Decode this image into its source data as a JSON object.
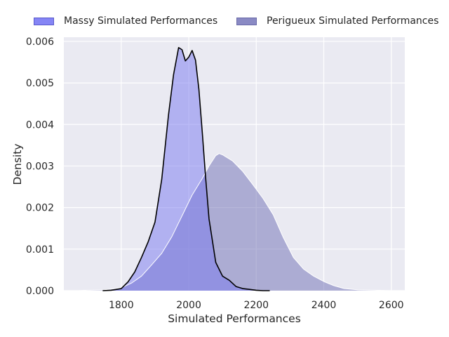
{
  "legend": [
    {
      "label": "Massy Simulated Performances",
      "color": "#8585f5",
      "edge": "#5a5acb"
    },
    {
      "label": "Perigueux Simulated Performances",
      "color": "#8a8ac4",
      "edge": "#6a6aa8"
    }
  ],
  "chart_data": {
    "type": "area",
    "title": "",
    "xlabel": "Simulated Performances",
    "ylabel": "Density",
    "xlim": [
      1630,
      2640
    ],
    "ylim": [
      0,
      0.0061
    ],
    "xticks": [
      1800,
      2000,
      2200,
      2400,
      2600
    ],
    "yticks": [
      0.0,
      0.001,
      0.002,
      0.003,
      0.004,
      0.005,
      0.006
    ],
    "ytick_labels": [
      "0.000",
      "0.001",
      "0.002",
      "0.003",
      "0.004",
      "0.005",
      "0.006"
    ],
    "grid": true,
    "legend_position": "top",
    "series": [
      {
        "name": "Massy Simulated Performances",
        "fill": "#7878f0",
        "fill_opacity": 0.5,
        "stroke": "#000000",
        "x": [
          1745,
          1770,
          1800,
          1820,
          1840,
          1860,
          1880,
          1900,
          1920,
          1940,
          1955,
          1970,
          1980,
          1990,
          2000,
          2010,
          2020,
          2030,
          2040,
          2050,
          2060,
          2080,
          2100,
          2120,
          2140,
          2160,
          2180,
          2200,
          2220,
          2240
        ],
        "y": [
          0.0,
          1e-05,
          5e-05,
          0.00021,
          0.00045,
          0.0008,
          0.00118,
          0.00165,
          0.00268,
          0.00423,
          0.0052,
          0.00585,
          0.0058,
          0.00553,
          0.00562,
          0.00578,
          0.00555,
          0.00485,
          0.00382,
          0.00272,
          0.00173,
          0.00068,
          0.00035,
          0.00025,
          0.0001,
          5e-05,
          3e-05,
          1e-05,
          0.0,
          0.0
        ]
      },
      {
        "name": "Perigueux Simulated Performances",
        "fill": "#6e6eb4",
        "fill_opacity": 0.5,
        "stroke": "#ffffff",
        "x": [
          1670,
          1700,
          1750,
          1800,
          1830,
          1860,
          1890,
          1920,
          1950,
          1980,
          2010,
          2040,
          2060,
          2080,
          2090,
          2100,
          2130,
          2160,
          2190,
          2220,
          2250,
          2280,
          2310,
          2340,
          2370,
          2400,
          2430,
          2460,
          2500,
          2550,
          2600
        ],
        "y": [
          0.0,
          1e-05,
          2e-05,
          7e-05,
          0.00018,
          0.00035,
          0.00062,
          0.0009,
          0.0013,
          0.0018,
          0.0023,
          0.0027,
          0.003,
          0.00325,
          0.0033,
          0.00327,
          0.00312,
          0.00287,
          0.00255,
          0.00222,
          0.00183,
          0.00128,
          0.0008,
          0.00052,
          0.00035,
          0.00022,
          0.00012,
          5e-05,
          2e-05,
          1e-05,
          0.0
        ]
      }
    ]
  }
}
